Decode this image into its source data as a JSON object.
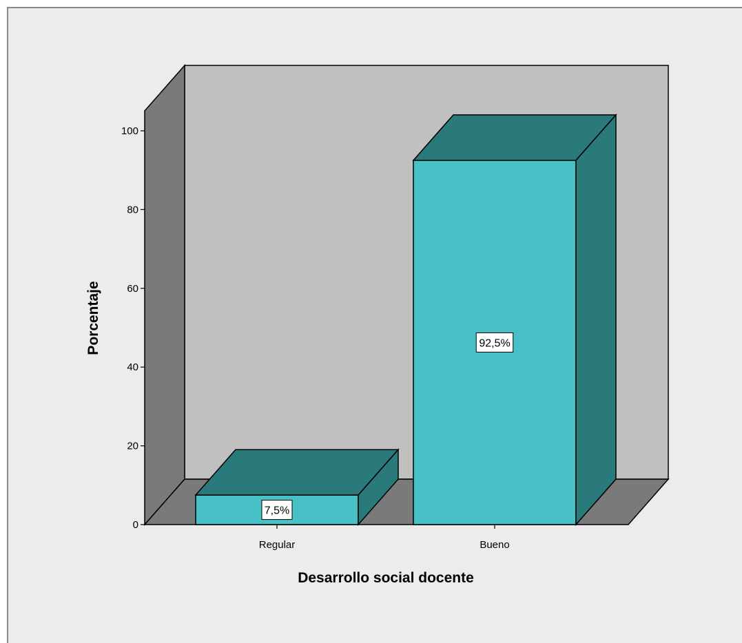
{
  "chart_data": {
    "type": "bar",
    "categories": [
      "Regular",
      "Bueno"
    ],
    "values": [
      7.5,
      92.5
    ],
    "data_labels": [
      "7,5%",
      "92,5%"
    ],
    "title": "",
    "xlabel": "Desarrollo social docente",
    "ylabel": "Porcentaje",
    "ylim": [
      0,
      100
    ],
    "yticks": [
      0,
      20,
      40,
      60,
      80,
      100
    ],
    "three_d": true,
    "grid": false,
    "colors": {
      "background": "#ececec",
      "back_wall": "#c0c0c0",
      "side_wall": "#7a7a7a",
      "floor": "#7a7a7a",
      "bar_front": "#48c1c6",
      "bar_top": "#2b7a7b",
      "bar_side": "#2b7a7b",
      "outline": "#000000"
    }
  }
}
